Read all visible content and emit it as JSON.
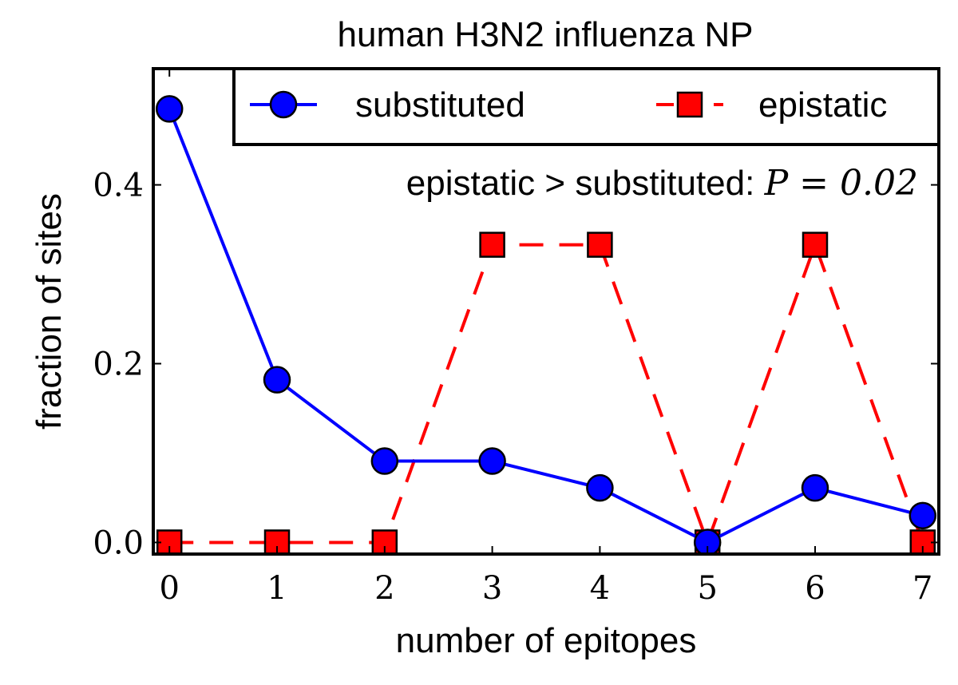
{
  "chart_data": {
    "type": "line",
    "title": "human H3N2 influenza NP",
    "xlabel": "number of epitopes",
    "ylabel": "fraction of sites",
    "x": [
      0,
      1,
      2,
      3,
      4,
      5,
      6,
      7
    ],
    "xlim": [
      -0.15,
      7.15
    ],
    "ylim": [
      -0.013,
      0.53
    ],
    "xticks": [
      "0",
      "1",
      "2",
      "3",
      "4",
      "5",
      "6",
      "7"
    ],
    "yticks": [
      {
        "value": 0.0,
        "label": "0.0"
      },
      {
        "value": 0.2,
        "label": "0.2"
      },
      {
        "value": 0.4,
        "label": "0.4"
      }
    ],
    "series": [
      {
        "name": "substituted",
        "color": "#0000ff",
        "marker": "circle",
        "linestyle": "solid",
        "values": [
          0.485,
          0.182,
          0.091,
          0.091,
          0.061,
          0.0,
          0.061,
          0.03
        ]
      },
      {
        "name": "epistatic",
        "color": "#ff0000",
        "marker": "square",
        "linestyle": "dashed",
        "values": [
          0.0,
          0.0,
          0.0,
          0.333,
          0.333,
          0.0,
          0.333,
          0.0
        ]
      }
    ],
    "annotation": {
      "text_left": "epistatic > substituted: ",
      "text_right": "P = 0.02"
    },
    "legend_position": "top-right",
    "grid": false
  }
}
